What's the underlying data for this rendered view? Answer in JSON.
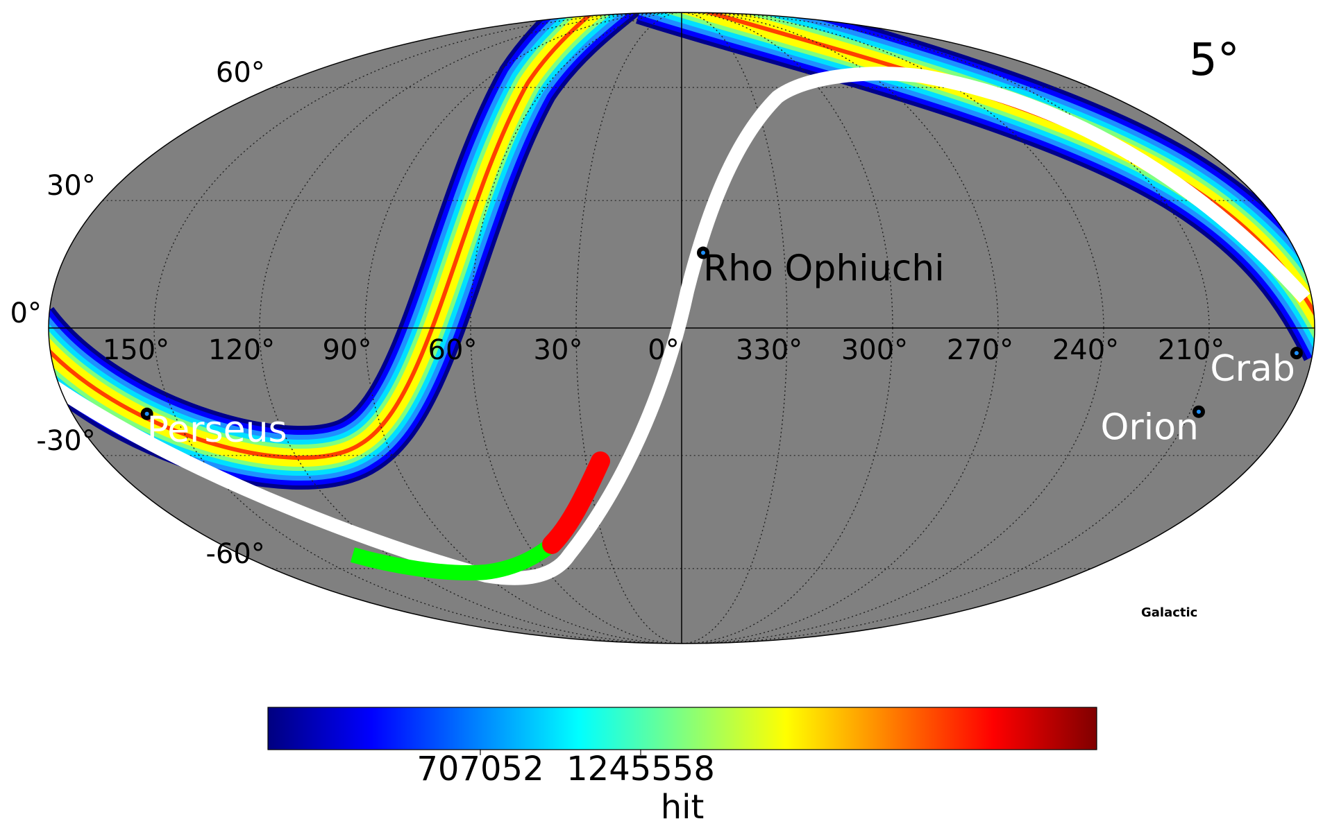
{
  "panel_label": "5°",
  "projection": "mollweide",
  "coord_system": "Galactic",
  "background_color": "#808080",
  "lat_labels": [
    "60°",
    "30°",
    "0°",
    "-30°",
    "-60°"
  ],
  "lon_labels": [
    "150°",
    "120°",
    "90°",
    "60°",
    "30°",
    "0°",
    "330°",
    "300°",
    "270°",
    "240°",
    "210°"
  ],
  "sources": [
    {
      "name": "Rho Ophiuchi",
      "lon_deg": 353.7,
      "lat_deg": 17.5,
      "label_color": "#000000"
    },
    {
      "name": "Perseus",
      "lon_deg": 158.0,
      "lat_deg": -20.0,
      "label_color": "#ffffff"
    },
    {
      "name": "Orion",
      "lon_deg": 207.5,
      "lat_deg": -19.5,
      "label_color": "#ffffff"
    },
    {
      "name": "Crab",
      "lon_deg": 184.6,
      "lat_deg": -5.8,
      "label_color": "#ffffff"
    }
  ],
  "colorbar": {
    "colormap": "jet",
    "tick_labels": [
      "707052",
      "1245558"
    ],
    "label": "hit"
  },
  "tracks": [
    {
      "color": "#ffffff"
    },
    {
      "color": "#00ff00"
    },
    {
      "color": "#ff0000"
    }
  ]
}
